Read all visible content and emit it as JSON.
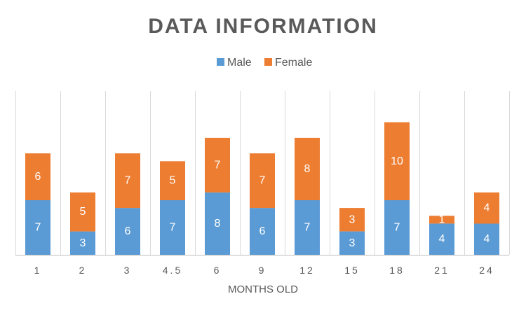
{
  "chart_data": {
    "type": "bar",
    "stacked": true,
    "title": "DATA INFORMATION",
    "xlabel": "MONTHS OLD",
    "ylabel": "",
    "categories": [
      "1",
      "2",
      "3",
      "4.5",
      "6",
      "9",
      "12",
      "15",
      "18",
      "21",
      "24"
    ],
    "series": [
      {
        "name": "Male",
        "color": "#5b9bd5",
        "values": [
          7,
          3,
          6,
          7,
          8,
          6,
          7,
          3,
          7,
          4,
          4
        ]
      },
      {
        "name": "Female",
        "color": "#ed7d31",
        "values": [
          6,
          5,
          7,
          5,
          7,
          7,
          8,
          3,
          10,
          1,
          4
        ]
      }
    ],
    "ylim": [
      0,
      21
    ],
    "legend_position": "top",
    "grid": "vertical category separators",
    "data_labels": true,
    "y_axis_visible": false
  }
}
